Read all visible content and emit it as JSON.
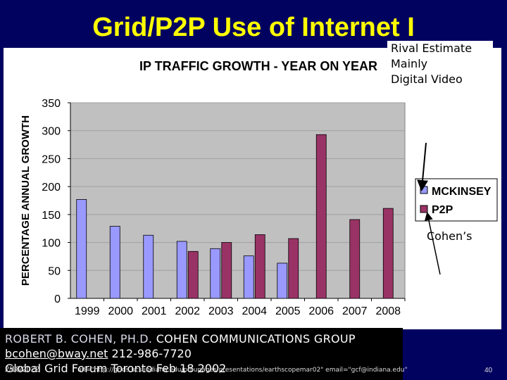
{
  "slide": {
    "title": "Grid/P2P Use of Internet I"
  },
  "callout": {
    "lines": [
      "Rival Estimate",
      "Mainly",
      "Digital Video"
    ]
  },
  "cohens_label": "Cohen’s",
  "footer": {
    "name": "ROBERT B. COHEN, PH.D.",
    "org": "COHEN COMMUNICATIONS GROUP",
    "email": "bcohen@bway.net",
    "phone": "212-986-7720",
    "event": "Global Grid Forum Toronto Feb 18 2002",
    "date": "2/18/2022",
    "url": "url=\"http://grids.ucs.indiana.edu/ptliupages/presentations/earthscopemar02\" email=\"gcf@indiana.edu\"",
    "page": "40"
  },
  "colors": {
    "mckinsey": "#9999ff",
    "p2p": "#993366",
    "plot_bg": "#c0c0c0",
    "title_yellow": "#ffff00"
  },
  "chart_data": {
    "type": "bar",
    "title": "IP TRAFFIC GROWTH - YEAR ON YEAR",
    "xlabel": "",
    "ylabel": "PERCENTAGE ANNUAL GROWTH",
    "ylim": [
      0,
      350
    ],
    "yticks": [
      "0",
      "50",
      "100",
      "150",
      "200",
      "250",
      "300",
      "350"
    ],
    "categories": [
      "1999",
      "2000",
      "2001",
      "2002",
      "2003",
      "2004",
      "2005",
      "2006",
      "2007",
      "2008"
    ],
    "series": [
      {
        "name": "MCKINSEY",
        "values": [
          177,
          129,
          113,
          102,
          89,
          76,
          63,
          null,
          null,
          null
        ]
      },
      {
        "name": "P2P",
        "values": [
          null,
          null,
          null,
          84,
          100,
          114,
          107,
          293,
          141,
          161
        ]
      }
    ],
    "legend": "right",
    "grid": true
  }
}
